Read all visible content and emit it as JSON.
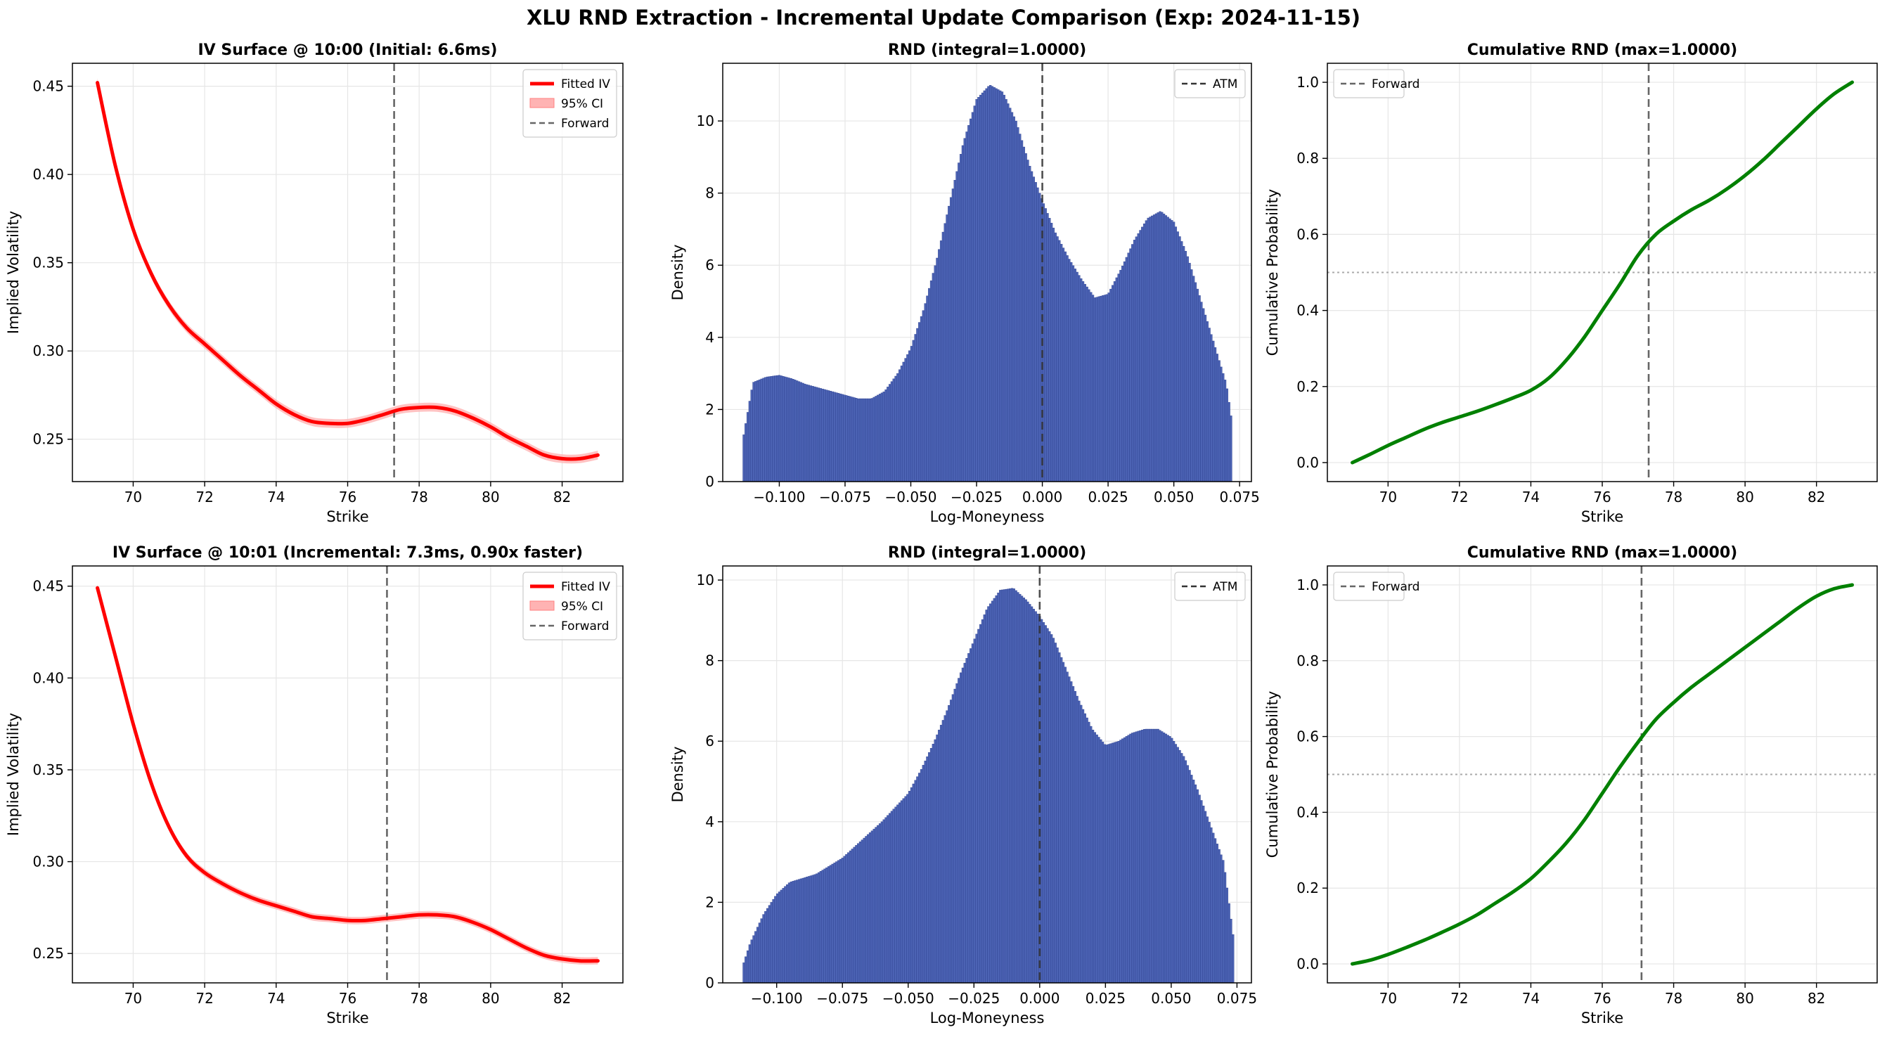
{
  "suptitle": "XLU RND Extraction - Incremental Update Comparison (Exp: 2024-11-15)",
  "colors": {
    "iv": "#ff0000",
    "ci": "#ffb3b3",
    "forward": "#666666",
    "bar": "#4c63b4",
    "bar_edge": "#2b3f8e",
    "cdf": "#008000",
    "grid": "#e6e6e6",
    "median": "#aaaaaa"
  },
  "chart_data": [
    {
      "type": "line",
      "title": "IV Surface @ 10:00 (Initial: 6.6ms)",
      "xlabel": "Strike",
      "ylabel": "Implied Volatility",
      "xlim": [
        68.3,
        83.7
      ],
      "ylim": [
        0.226,
        0.463
      ],
      "xticks": [
        70,
        72,
        74,
        76,
        78,
        80,
        82
      ],
      "yticks": [
        0.25,
        0.3,
        0.35,
        0.4,
        0.45
      ],
      "ytick_labels": [
        "0.25",
        "0.30",
        "0.35",
        "0.40",
        "0.45"
      ],
      "legend": {
        "position": "upper right",
        "entries": [
          "Fitted IV",
          "95% CI",
          "Forward"
        ]
      },
      "forward": 77.3,
      "ci_halfwidth": 0.0025,
      "series": [
        {
          "name": "Fitted IV",
          "x": [
            69.0,
            69.5,
            70.0,
            70.5,
            71.0,
            71.5,
            72.0,
            72.5,
            73.0,
            73.5,
            74.0,
            74.5,
            75.0,
            75.5,
            76.0,
            76.5,
            77.0,
            77.5,
            78.0,
            78.5,
            79.0,
            79.5,
            80.0,
            80.5,
            81.0,
            81.5,
            82.0,
            82.5,
            83.0
          ],
          "y": [
            0.452,
            0.405,
            0.369,
            0.344,
            0.326,
            0.313,
            0.304,
            0.295,
            0.286,
            0.278,
            0.27,
            0.264,
            0.26,
            0.259,
            0.259,
            0.261,
            0.264,
            0.267,
            0.268,
            0.268,
            0.266,
            0.262,
            0.257,
            0.251,
            0.246,
            0.241,
            0.239,
            0.239,
            0.241
          ]
        }
      ]
    },
    {
      "type": "bar",
      "title": "RND (integral=1.0000)",
      "xlabel": "Log-Moneyness",
      "ylabel": "Density",
      "xlim": [
        -0.1215,
        0.0795
      ],
      "ylim": [
        0,
        11.6
      ],
      "xticks": [
        -0.1,
        -0.075,
        -0.05,
        -0.025,
        0,
        0.025,
        0.05,
        0.075
      ],
      "xtick_labels": [
        "−0.100",
        "−0.075",
        "−0.050",
        "−0.025",
        "0.000",
        "0.025",
        "0.050",
        "0.075"
      ],
      "yticks": [
        0,
        2,
        4,
        6,
        8,
        10
      ],
      "ytick_labels": [
        "0",
        "2",
        "4",
        "6",
        "8",
        "10"
      ],
      "legend": {
        "position": "upper right",
        "entries": [
          "ATM"
        ]
      },
      "atm": 0.0,
      "x": [
        -0.1135,
        -0.11,
        -0.105,
        -0.1,
        -0.095,
        -0.09,
        -0.085,
        -0.08,
        -0.075,
        -0.07,
        -0.065,
        -0.06,
        -0.055,
        -0.05,
        -0.045,
        -0.04,
        -0.035,
        -0.03,
        -0.025,
        -0.02,
        -0.015,
        -0.01,
        -0.005,
        0.0,
        0.005,
        0.01,
        0.015,
        0.02,
        0.025,
        0.03,
        0.035,
        0.04,
        0.045,
        0.05,
        0.055,
        0.06,
        0.065,
        0.07,
        0.072
      ],
      "y": [
        1.3,
        2.75,
        2.9,
        2.95,
        2.85,
        2.7,
        2.6,
        2.5,
        2.4,
        2.3,
        2.3,
        2.5,
        3.0,
        3.7,
        4.8,
        6.2,
        7.8,
        9.4,
        10.6,
        11.0,
        10.8,
        10.0,
        8.8,
        7.8,
        6.9,
        6.2,
        5.6,
        5.1,
        5.2,
        5.9,
        6.7,
        7.3,
        7.5,
        7.2,
        6.3,
        5.1,
        3.9,
        2.7,
        1.7
      ]
    },
    {
      "type": "line",
      "title": "Cumulative RND (max=1.0000)",
      "xlabel": "Strike",
      "ylabel": "Cumulative Probability",
      "xlim": [
        68.3,
        83.7
      ],
      "ylim": [
        -0.05,
        1.05
      ],
      "xticks": [
        70,
        72,
        74,
        76,
        78,
        80,
        82
      ],
      "yticks": [
        0,
        0.2,
        0.4,
        0.6,
        0.8,
        1.0
      ],
      "ytick_labels": [
        "0.0",
        "0.2",
        "0.4",
        "0.6",
        "0.8",
        "1.0"
      ],
      "legend": {
        "position": "upper left",
        "entries": [
          "Forward"
        ]
      },
      "forward": 77.3,
      "series": [
        {
          "x": [
            69.0,
            69.5,
            70.0,
            70.5,
            71.0,
            71.5,
            72.0,
            72.5,
            73.0,
            73.5,
            74.0,
            74.5,
            75.0,
            75.5,
            76.0,
            76.5,
            77.0,
            77.5,
            78.0,
            78.5,
            79.0,
            79.5,
            80.0,
            80.5,
            81.0,
            81.5,
            82.0,
            82.5,
            83.0
          ],
          "y": [
            0.0,
            0.022,
            0.045,
            0.066,
            0.087,
            0.105,
            0.12,
            0.135,
            0.152,
            0.17,
            0.19,
            0.222,
            0.27,
            0.33,
            0.4,
            0.47,
            0.545,
            0.6,
            0.635,
            0.665,
            0.69,
            0.72,
            0.755,
            0.795,
            0.84,
            0.885,
            0.93,
            0.97,
            1.0
          ]
        }
      ],
      "median_line": 0.5
    },
    {
      "type": "line",
      "title": "IV Surface @ 10:01 (Incremental: 7.3ms, 0.90x faster)",
      "xlabel": "Strike",
      "ylabel": "Implied Volatility",
      "xlim": [
        68.3,
        83.7
      ],
      "ylim": [
        0.234,
        0.461
      ],
      "xticks": [
        70,
        72,
        74,
        76,
        78,
        80,
        82
      ],
      "yticks": [
        0.25,
        0.3,
        0.35,
        0.4,
        0.45
      ],
      "ytick_labels": [
        "0.25",
        "0.30",
        "0.35",
        "0.40",
        "0.45"
      ],
      "legend": {
        "position": "upper right",
        "entries": [
          "Fitted IV",
          "95% CI",
          "Forward"
        ]
      },
      "forward": 77.1,
      "ci_halfwidth": 0.002,
      "series": [
        {
          "name": "Fitted IV",
          "x": [
            69.0,
            69.5,
            70.0,
            70.5,
            71.0,
            71.5,
            72.0,
            72.5,
            73.0,
            73.5,
            74.0,
            74.5,
            75.0,
            75.5,
            76.0,
            76.5,
            77.0,
            77.5,
            78.0,
            78.5,
            79.0,
            79.5,
            80.0,
            80.5,
            81.0,
            81.5,
            82.0,
            82.5,
            83.0
          ],
          "y": [
            0.449,
            0.412,
            0.375,
            0.343,
            0.319,
            0.303,
            0.294,
            0.288,
            0.283,
            0.279,
            0.276,
            0.273,
            0.27,
            0.269,
            0.268,
            0.268,
            0.269,
            0.27,
            0.271,
            0.271,
            0.27,
            0.267,
            0.263,
            0.258,
            0.253,
            0.249,
            0.247,
            0.246,
            0.246
          ]
        }
      ]
    },
    {
      "type": "bar",
      "title": "RND (integral=1.0000)",
      "xlabel": "Log-Moneyness",
      "ylabel": "Density",
      "xlim": [
        -0.1205,
        0.0805
      ],
      "ylim": [
        0,
        10.35
      ],
      "xticks": [
        -0.1,
        -0.075,
        -0.05,
        -0.025,
        0,
        0.025,
        0.05,
        0.075
      ],
      "xtick_labels": [
        "−0.100",
        "−0.075",
        "−0.050",
        "−0.025",
        "0.000",
        "0.025",
        "0.050",
        "0.075"
      ],
      "yticks": [
        0,
        2,
        4,
        6,
        8,
        10
      ],
      "ytick_labels": [
        "0",
        "2",
        "4",
        "6",
        "8",
        "10"
      ],
      "legend": {
        "position": "upper right",
        "entries": [
          "ATM"
        ]
      },
      "atm": 0.0,
      "x": [
        -0.1125,
        -0.11,
        -0.105,
        -0.1,
        -0.095,
        -0.09,
        -0.085,
        -0.08,
        -0.075,
        -0.07,
        -0.065,
        -0.06,
        -0.055,
        -0.05,
        -0.045,
        -0.04,
        -0.035,
        -0.03,
        -0.025,
        -0.02,
        -0.015,
        -0.01,
        -0.005,
        0.0,
        0.005,
        0.01,
        0.015,
        0.02,
        0.025,
        0.03,
        0.035,
        0.04,
        0.045,
        0.05,
        0.055,
        0.06,
        0.065,
        0.07,
        0.0735
      ],
      "y": [
        0.5,
        1.0,
        1.7,
        2.2,
        2.5,
        2.6,
        2.7,
        2.9,
        3.1,
        3.4,
        3.7,
        4.0,
        4.35,
        4.7,
        5.3,
        6.0,
        6.8,
        7.7,
        8.5,
        9.3,
        9.75,
        9.8,
        9.5,
        9.1,
        8.6,
        7.8,
        7.0,
        6.3,
        5.9,
        6.0,
        6.2,
        6.3,
        6.3,
        6.1,
        5.6,
        4.8,
        3.9,
        3.0,
        1.2
      ]
    },
    {
      "type": "line",
      "title": "Cumulative RND (max=1.0000)",
      "xlabel": "Strike",
      "ylabel": "Cumulative Probability",
      "xlim": [
        68.3,
        83.7
      ],
      "ylim": [
        -0.05,
        1.05
      ],
      "xticks": [
        70,
        72,
        74,
        76,
        78,
        80,
        82
      ],
      "yticks": [
        0,
        0.2,
        0.4,
        0.6,
        0.8,
        1.0
      ],
      "ytick_labels": [
        "0.0",
        "0.2",
        "0.4",
        "0.6",
        "0.8",
        "1.0"
      ],
      "legend": {
        "position": "upper left",
        "entries": [
          "Forward"
        ]
      },
      "forward": 77.1,
      "series": [
        {
          "x": [
            69.0,
            69.5,
            70.0,
            70.5,
            71.0,
            71.5,
            72.0,
            72.5,
            73.0,
            73.5,
            74.0,
            74.5,
            75.0,
            75.5,
            76.0,
            76.5,
            77.0,
            77.5,
            78.0,
            78.5,
            79.0,
            79.5,
            80.0,
            80.5,
            81.0,
            81.5,
            82.0,
            82.5,
            83.0
          ],
          "y": [
            0.0,
            0.01,
            0.025,
            0.043,
            0.062,
            0.083,
            0.105,
            0.13,
            0.16,
            0.19,
            0.225,
            0.27,
            0.32,
            0.38,
            0.45,
            0.52,
            0.585,
            0.645,
            0.69,
            0.73,
            0.765,
            0.8,
            0.835,
            0.87,
            0.905,
            0.94,
            0.97,
            0.99,
            1.0
          ]
        }
      ],
      "median_line": 0.5
    }
  ]
}
